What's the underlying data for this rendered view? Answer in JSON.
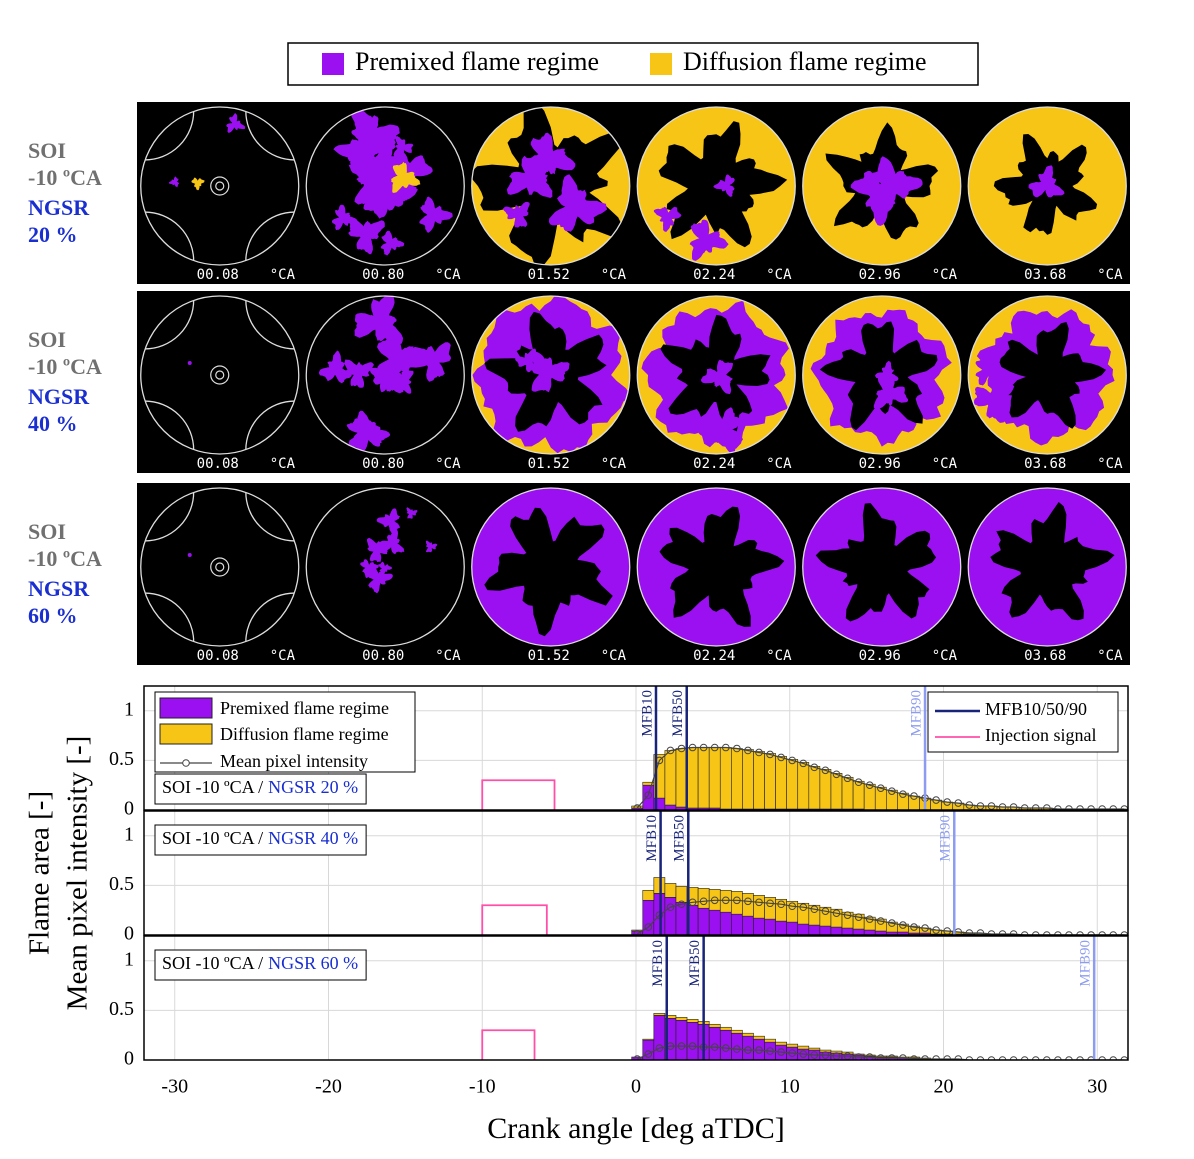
{
  "image_rows": [
    {
      "soi": "SOI",
      "soi_value": "-10 ºCA",
      "ngsr": "NGSR",
      "ngsr_value": "20 %",
      "frames": [
        "00.08",
        "00.80",
        "01.52",
        "02.24",
        "02.96",
        "03.68"
      ],
      "unit": "°CA"
    },
    {
      "soi": "SOI",
      "soi_value": "-10 ºCA",
      "ngsr": "NGSR",
      "ngsr_value": "40 %",
      "frames": [
        "00.08",
        "00.80",
        "01.52",
        "02.24",
        "02.96",
        "03.68"
      ],
      "unit": "°CA"
    },
    {
      "soi": "SOI",
      "soi_value": "-10 ºCA",
      "ngsr": "NGSR",
      "ngsr_value": "60 %",
      "frames": [
        "00.08",
        "00.80",
        "01.52",
        "02.24",
        "02.96",
        "03.68"
      ],
      "unit": "°CA"
    }
  ],
  "chart_data": [
    {
      "type": "bar",
      "panel_label": "SOI -10 ºCA /",
      "panel_label_ngsr": "NGSR 20 %",
      "xlim": [
        -32,
        32
      ],
      "xticks": [
        -30,
        -20,
        -10,
        0,
        10,
        20,
        30
      ],
      "ylim": [
        0,
        1.25
      ],
      "yticks": [
        0,
        0.5,
        1
      ],
      "grid": true,
      "x": [
        0.08,
        0.8,
        1.52,
        2.24,
        2.96,
        3.68,
        4.4,
        5.12,
        5.84,
        6.56,
        7.28,
        8,
        8.72,
        9.44,
        10.16,
        10.88,
        11.6,
        12.32,
        13.04,
        13.76,
        14.48,
        15.2,
        15.92,
        16.64,
        17.36,
        18.08,
        18.8,
        19.52,
        20.24,
        20.96,
        21.68,
        22.4,
        23.12,
        23.84,
        24.56,
        25.28,
        26,
        26.72,
        27.44,
        28.16,
        28.88,
        29.6,
        30.32,
        31.04,
        31.76
      ],
      "series": [
        {
          "name": "Premixed flame regime",
          "color": "#9b10f0",
          "values": [
            0.02,
            0.25,
            0.12,
            0.05,
            0.03,
            0.02,
            0.02,
            0.02,
            0.01,
            0.01,
            0.01,
            0.01,
            0.01,
            0.01,
            0.01,
            0.01,
            0.01,
            0.01,
            0.01,
            0.01,
            0.01,
            0,
            0,
            0,
            0,
            0,
            0,
            0,
            0,
            0,
            0,
            0,
            0,
            0,
            0,
            0,
            0,
            0,
            0,
            0,
            0,
            0,
            0,
            0,
            0
          ]
        },
        {
          "name": "Diffusion flame regime",
          "color": "#f7c516",
          "values": [
            0.02,
            0.03,
            0.44,
            0.55,
            0.59,
            0.61,
            0.61,
            0.61,
            0.62,
            0.61,
            0.6,
            0.58,
            0.56,
            0.53,
            0.5,
            0.47,
            0.43,
            0.4,
            0.36,
            0.32,
            0.28,
            0.26,
            0.23,
            0.2,
            0.17,
            0.14,
            0.12,
            0.1,
            0.08,
            0.07,
            0.05,
            0.04,
            0.04,
            0.03,
            0.03,
            0.02,
            0.02,
            0.02,
            0.01,
            0.01,
            0.01,
            0.01,
            0.01,
            0.01,
            0.01
          ]
        },
        {
          "name": "Mean pixel intensity",
          "type": "line",
          "color": "#444444",
          "values": [
            0.02,
            0.15,
            0.5,
            0.6,
            0.62,
            0.63,
            0.63,
            0.63,
            0.63,
            0.62,
            0.6,
            0.58,
            0.56,
            0.53,
            0.5,
            0.47,
            0.43,
            0.4,
            0.36,
            0.32,
            0.28,
            0.25,
            0.22,
            0.19,
            0.16,
            0.14,
            0.12,
            0.1,
            0.08,
            0.07,
            0.05,
            0.04,
            0.04,
            0.03,
            0.03,
            0.02,
            0.02,
            0.02,
            0.01,
            0.01,
            0.01,
            0.01,
            0.01,
            0.01,
            0.01
          ]
        }
      ],
      "mfb_legend": "MFB10/50/90",
      "mfb": [
        {
          "name": "MFB10",
          "value": 1.3,
          "color": "#18247a"
        },
        {
          "name": "MFB50",
          "value": 3.3,
          "color": "#18247a"
        },
        {
          "name": "MFB90",
          "value": 18.8,
          "color": "#8c9cf0"
        }
      ],
      "injection": {
        "name": "Injection signal",
        "color": "#ff4fa8",
        "start": -10,
        "end": -5.3,
        "level": 0.3
      }
    },
    {
      "type": "bar",
      "panel_label": "SOI -10 ºCA /",
      "panel_label_ngsr": "NGSR 40 %",
      "ylabel": [
        "Flame area [-]",
        "Mean pixel intensity [-]"
      ],
      "xlim": [
        -32,
        32
      ],
      "xticks": [
        -30,
        -20,
        -10,
        0,
        10,
        20,
        30
      ],
      "ylim": [
        0,
        1.25
      ],
      "yticks": [
        0,
        0.5,
        1
      ],
      "grid": true,
      "x": [
        0.08,
        0.8,
        1.52,
        2.24,
        2.96,
        3.68,
        4.4,
        5.12,
        5.84,
        6.56,
        7.28,
        8,
        8.72,
        9.44,
        10.16,
        10.88,
        11.6,
        12.32,
        13.04,
        13.76,
        14.48,
        15.2,
        15.92,
        16.64,
        17.36,
        18.08,
        18.8,
        19.52,
        20.24,
        20.96,
        21.68,
        22.4,
        23.12,
        23.84,
        24.56,
        25.28,
        26,
        26.72,
        27.44,
        28.16,
        28.88,
        29.6,
        30.32,
        31.04,
        31.76
      ],
      "series": [
        {
          "color": "#9b10f0",
          "values": [
            0.04,
            0.35,
            0.42,
            0.38,
            0.33,
            0.3,
            0.27,
            0.25,
            0.23,
            0.21,
            0.19,
            0.17,
            0.16,
            0.14,
            0.13,
            0.11,
            0.1,
            0.09,
            0.08,
            0.07,
            0.06,
            0.05,
            0.04,
            0.03,
            0.03,
            0.02,
            0.02,
            0.01,
            0.01,
            0.01,
            0.01,
            0,
            0,
            0,
            0,
            0,
            0,
            0,
            0,
            0,
            0,
            0,
            0,
            0,
            0
          ]
        },
        {
          "color": "#f7c516",
          "values": [
            0.01,
            0.1,
            0.16,
            0.14,
            0.16,
            0.18,
            0.2,
            0.21,
            0.22,
            0.23,
            0.23,
            0.23,
            0.22,
            0.22,
            0.21,
            0.21,
            0.2,
            0.19,
            0.18,
            0.16,
            0.15,
            0.13,
            0.12,
            0.1,
            0.08,
            0.07,
            0.05,
            0.04,
            0.03,
            0.02,
            0.01,
            0.01,
            0.01,
            0,
            0,
            0,
            0,
            0,
            0,
            0,
            0,
            0,
            0,
            0,
            0
          ]
        },
        {
          "type": "line",
          "color": "#444444",
          "values": [
            0.01,
            0.08,
            0.2,
            0.28,
            0.31,
            0.33,
            0.34,
            0.35,
            0.35,
            0.35,
            0.34,
            0.33,
            0.32,
            0.31,
            0.29,
            0.28,
            0.26,
            0.24,
            0.22,
            0.2,
            0.18,
            0.16,
            0.14,
            0.12,
            0.1,
            0.08,
            0.07,
            0.05,
            0.04,
            0.03,
            0.02,
            0.02,
            0.01,
            0.01,
            0.01,
            0,
            0,
            0,
            0,
            0,
            0,
            0,
            0,
            0,
            0
          ]
        }
      ],
      "mfb": [
        {
          "name": "MFB10",
          "value": 1.6,
          "color": "#18247a"
        },
        {
          "name": "MFB50",
          "value": 3.4,
          "color": "#18247a"
        },
        {
          "name": "MFB90",
          "value": 20.7,
          "color": "#8c9cf0"
        }
      ],
      "injection": {
        "color": "#ff4fa8",
        "start": -10,
        "end": -5.8,
        "level": 0.3
      }
    },
    {
      "type": "bar",
      "panel_label": "SOI -10 ºCA /",
      "panel_label_ngsr": "NGSR 60 %",
      "xlabel": "Crank angle [deg aTDC]",
      "xlim": [
        -32,
        32
      ],
      "xticks": [
        -30,
        -20,
        -10,
        0,
        10,
        20,
        30
      ],
      "ylim": [
        0,
        1.25
      ],
      "yticks": [
        0,
        0.5,
        1
      ],
      "grid": true,
      "x": [
        0.08,
        0.8,
        1.52,
        2.24,
        2.96,
        3.68,
        4.4,
        5.12,
        5.84,
        6.56,
        7.28,
        8,
        8.72,
        9.44,
        10.16,
        10.88,
        11.6,
        12.32,
        13.04,
        13.76,
        14.48,
        15.2,
        15.92,
        16.64,
        17.36,
        18.08,
        18.8,
        19.52,
        20.24,
        20.96,
        21.68,
        22.4,
        23.12,
        23.84,
        24.56,
        25.28,
        26,
        26.72,
        27.44,
        28.16,
        28.88,
        29.6,
        30.32,
        31.04,
        31.76
      ],
      "series": [
        {
          "color": "#9b10f0",
          "values": [
            0.03,
            0.2,
            0.45,
            0.42,
            0.4,
            0.38,
            0.36,
            0.33,
            0.3,
            0.27,
            0.24,
            0.21,
            0.18,
            0.15,
            0.13,
            0.11,
            0.1,
            0.08,
            0.07,
            0.06,
            0.05,
            0.04,
            0.03,
            0.03,
            0.02,
            0.02,
            0.01,
            0.01,
            0.01,
            0,
            0,
            0,
            0,
            0,
            0,
            0,
            0,
            0,
            0,
            0,
            0,
            0,
            0,
            0,
            0
          ]
        },
        {
          "color": "#f7c516",
          "values": [
            0,
            0.01,
            0.02,
            0.03,
            0.03,
            0.03,
            0.03,
            0.03,
            0.03,
            0.03,
            0.03,
            0.03,
            0.03,
            0.03,
            0.03,
            0.03,
            0.02,
            0.02,
            0.02,
            0.02,
            0.01,
            0.01,
            0.01,
            0.01,
            0.01,
            0.01,
            0.01,
            0,
            0,
            0,
            0,
            0,
            0,
            0,
            0,
            0,
            0,
            0,
            0,
            0,
            0,
            0,
            0,
            0,
            0
          ]
        },
        {
          "type": "line",
          "color": "#444444",
          "values": [
            0.01,
            0.06,
            0.12,
            0.14,
            0.14,
            0.14,
            0.13,
            0.13,
            0.12,
            0.11,
            0.1,
            0.1,
            0.09,
            0.08,
            0.07,
            0.06,
            0.05,
            0.05,
            0.04,
            0.04,
            0.03,
            0.03,
            0.02,
            0.02,
            0.02,
            0.01,
            0.01,
            0.01,
            0.01,
            0.01,
            0,
            0,
            0,
            0,
            0,
            0,
            0,
            0,
            0,
            0,
            0,
            0,
            0,
            0,
            0
          ]
        }
      ],
      "mfb": [
        {
          "name": "MFB10",
          "value": 2.0,
          "color": "#18247a"
        },
        {
          "name": "MFB50",
          "value": 4.4,
          "color": "#18247a"
        },
        {
          "name": "MFB90",
          "value": 29.8,
          "color": "#8c9cf0"
        }
      ],
      "injection": {
        "color": "#ff4fa8",
        "start": -10,
        "end": -6.6,
        "level": 0.3
      }
    }
  ]
}
